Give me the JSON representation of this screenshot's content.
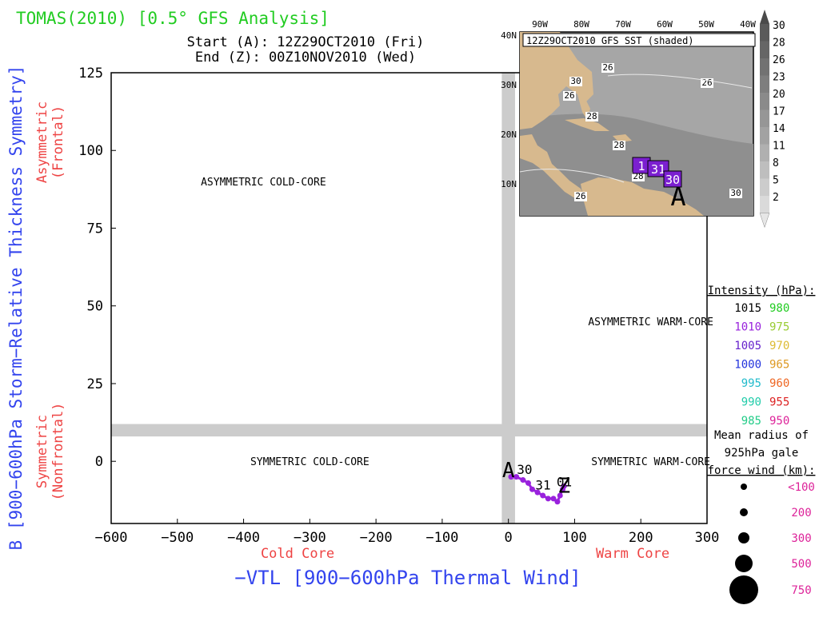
{
  "header": {
    "title": "TOMAS(2010) [0.5° GFS Analysis]",
    "start_line": "Start (A): 12Z29OCT2010 (Fri)",
    "end_line": "End (Z): 00Z10NOV2010 (Wed)"
  },
  "colors": {
    "title": "#22cc22",
    "blue_label": "#3344ee",
    "red_label": "#ee4444",
    "gray_band": "#cccccc",
    "track": "#9922dd",
    "land": "#d7b98e",
    "sea": "#a6a6a6"
  },
  "chart_data": {
    "type": "line",
    "title": "TOMAS(2010) [0.5° GFS Analysis]",
    "xlabel": "−VTL [900−600hPa Thermal Wind]",
    "ylabel": "B [900−600hPa Storm−Relative Thickness Symmetry]",
    "xlim": [
      -600,
      300
    ],
    "ylim": [
      -20,
      125
    ],
    "x_ticks": [
      -600,
      -500,
      -400,
      -300,
      -200,
      -100,
      0,
      100,
      200,
      300
    ],
    "y_ticks": [
      0,
      25,
      50,
      75,
      100,
      125
    ],
    "grid": false,
    "left_labels": {
      "top": [
        "Asymmetric",
        "(Frontal)"
      ],
      "bottom": [
        "Symmetric",
        "(Nonfrontal)"
      ]
    },
    "bottom_labels": {
      "left": "Cold Core",
      "right": "Warm Core"
    },
    "quadrants": [
      {
        "text": "ASYMMETRIC COLD-CORE",
        "x": -370,
        "y": 90
      },
      {
        "text": "ASYMMETRIC WARM-CORE",
        "x": 215,
        "y": 45
      },
      {
        "text": "SYMMETRIC COLD-CORE",
        "x": -300,
        "y": 0
      },
      {
        "text": "SYMMETRIC WARM-CORE",
        "x": 215,
        "y": 0
      }
    ],
    "series": [
      {
        "points": [
          {
            "x": 4,
            "y": -5
          },
          {
            "x": 12,
            "y": -5
          },
          {
            "x": 22,
            "y": -6
          },
          {
            "x": 30,
            "y": -7
          },
          {
            "x": 36,
            "y": -9
          },
          {
            "x": 44,
            "y": -10
          },
          {
            "x": 52,
            "y": -11
          },
          {
            "x": 60,
            "y": -12
          },
          {
            "x": 68,
            "y": -12
          },
          {
            "x": 74,
            "y": -13
          },
          {
            "x": 78,
            "y": -11
          },
          {
            "x": 82,
            "y": -9
          },
          {
            "x": 84,
            "y": -8
          }
        ]
      }
    ],
    "annotations": [
      {
        "text": "A",
        "x": 0,
        "y": -3
      },
      {
        "text": "30",
        "x": 22,
        "y": -3
      },
      {
        "text": "31",
        "x": 50,
        "y": -8
      },
      {
        "text": "01",
        "x": 82,
        "y": -7
      },
      {
        "text": "Z",
        "x": 84,
        "y": -8
      }
    ]
  },
  "inset": {
    "title": "12Z29OCT2010 GFS SST (shaded)",
    "lon_labels": [
      "90W",
      "80W",
      "70W",
      "60W",
      "50W",
      "40W"
    ],
    "lat_labels": [
      "40N",
      "30N",
      "20N",
      "10N"
    ],
    "contour_labels": [
      "26",
      "26",
      "26",
      "28",
      "28",
      "26",
      "28",
      "30",
      "30"
    ],
    "track_labels": [
      "1",
      "31",
      "30"
    ],
    "start_marker": "A",
    "colorbar": [
      "30",
      "28",
      "26",
      "23",
      "20",
      "17",
      "14",
      "11",
      "8",
      "5",
      "2"
    ]
  },
  "legend": {
    "intensity_title": "Intensity (hPa):",
    "intensity": [
      {
        "left": "1015",
        "left_color": "#000000",
        "right": "980",
        "right_color": "#22cc22"
      },
      {
        "left": "1010",
        "left_color": "#9922dd",
        "right": "975",
        "right_color": "#99cc33"
      },
      {
        "left": "1005",
        "left_color": "#6622cc",
        "right": "970",
        "right_color": "#ddbb33"
      },
      {
        "left": "1000",
        "left_color": "#2233dd",
        "right": "965",
        "right_color": "#dd9922"
      },
      {
        "left": "995",
        "left_color": "#22bbcc",
        "right": "960",
        "right_color": "#ee6622"
      },
      {
        "left": "990",
        "left_color": "#22ccaa",
        "right": "955",
        "right_color": "#dd2222"
      },
      {
        "left": "985",
        "left_color": "#22cc88",
        "right": "950",
        "right_color": "#dd2299"
      }
    ],
    "radius_title": [
      "Mean radius of",
      "925hPa gale",
      "force wind (km):"
    ],
    "radius": [
      {
        "label": "<100",
        "r": 4
      },
      {
        "label": "200",
        "r": 5
      },
      {
        "label": "300",
        "r": 7
      },
      {
        "label": "500",
        "r": 11
      },
      {
        "label": "750",
        "r": 18
      }
    ]
  }
}
